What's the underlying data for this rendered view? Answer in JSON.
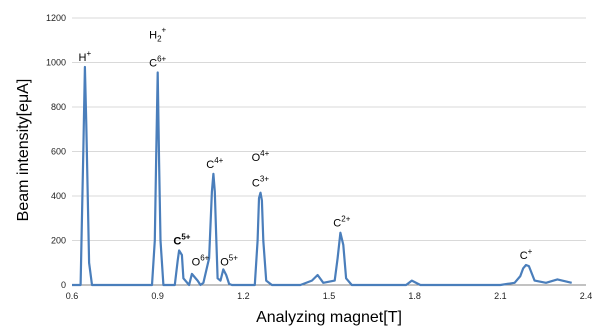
{
  "chart_data": {
    "type": "line",
    "xlabel": "Analyzing magnet[T]",
    "ylabel": "Beam intensity[eμA]",
    "xlim": [
      0.6,
      2.4
    ],
    "ylim": [
      0,
      1200
    ],
    "xticks": [
      "0.6",
      "0.9",
      "1.2",
      "1.5",
      "1.8",
      "2.1",
      "2.4"
    ],
    "yticks": [
      "0",
      "200",
      "400",
      "600",
      "800",
      "1000",
      "1200"
    ],
    "grid": "horizontal",
    "series": [
      {
        "color": "#4a7ebb",
        "x": [
          0.6,
          0.63,
          0.64,
          0.645,
          0.65,
          0.66,
          0.67,
          0.88,
          0.89,
          0.895,
          0.9,
          0.905,
          0.91,
          0.92,
          0.96,
          0.97,
          0.975,
          0.985,
          0.99,
          1.01,
          1.02,
          1.04,
          1.05,
          1.06,
          1.08,
          1.09,
          1.095,
          1.1,
          1.105,
          1.11,
          1.12,
          1.13,
          1.14,
          1.15,
          1.16,
          1.24,
          1.25,
          1.255,
          1.26,
          1.265,
          1.27,
          1.28,
          1.3,
          1.4,
          1.44,
          1.46,
          1.48,
          1.52,
          1.53,
          1.54,
          1.55,
          1.56,
          1.58,
          1.7,
          1.77,
          1.79,
          1.82,
          2.1,
          2.15,
          2.17,
          2.18,
          2.19,
          2.2,
          2.22,
          2.26,
          2.3,
          2.35
        ],
        "y": [
          0,
          0,
          620,
          980,
          720,
          100,
          0,
          0,
          200,
          580,
          955,
          550,
          200,
          0,
          0,
          110,
          155,
          135,
          30,
          0,
          50,
          20,
          0,
          10,
          120,
          420,
          500,
          420,
          220,
          30,
          20,
          70,
          45,
          5,
          0,
          0,
          200,
          390,
          415,
          380,
          200,
          20,
          0,
          0,
          20,
          45,
          10,
          20,
          120,
          235,
          180,
          30,
          0,
          0,
          0,
          20,
          0,
          0,
          10,
          40,
          75,
          90,
          85,
          20,
          10,
          25,
          10
        ]
      }
    ],
    "annotations": [
      {
        "base": "H",
        "sup": "+",
        "x": 0.645,
        "y": 980
      },
      {
        "base": "H",
        "sub": "2",
        "sup": "+",
        "x": 0.9,
        "y": 1080
      },
      {
        "base": "C",
        "sup": "6+",
        "x": 0.9,
        "y": 955
      },
      {
        "base": "C",
        "sup": "5+",
        "x": 0.985,
        "y": 155,
        "color": "#ff0000",
        "bold": true
      },
      {
        "base": "O",
        "sup": "6+",
        "x": 1.05,
        "y": 60
      },
      {
        "base": "C",
        "sup": "4+",
        "x": 1.1,
        "y": 500
      },
      {
        "base": "O",
        "sup": "5+",
        "x": 1.15,
        "y": 60
      },
      {
        "base": "O",
        "sup": "4+",
        "x": 1.26,
        "y": 530
      },
      {
        "base": "C",
        "sup": "3+",
        "x": 1.26,
        "y": 415
      },
      {
        "base": "C",
        "sup": "2+",
        "x": 1.545,
        "y": 235
      },
      {
        "base": "C",
        "sup": "+",
        "x": 2.19,
        "y": 90
      }
    ]
  }
}
